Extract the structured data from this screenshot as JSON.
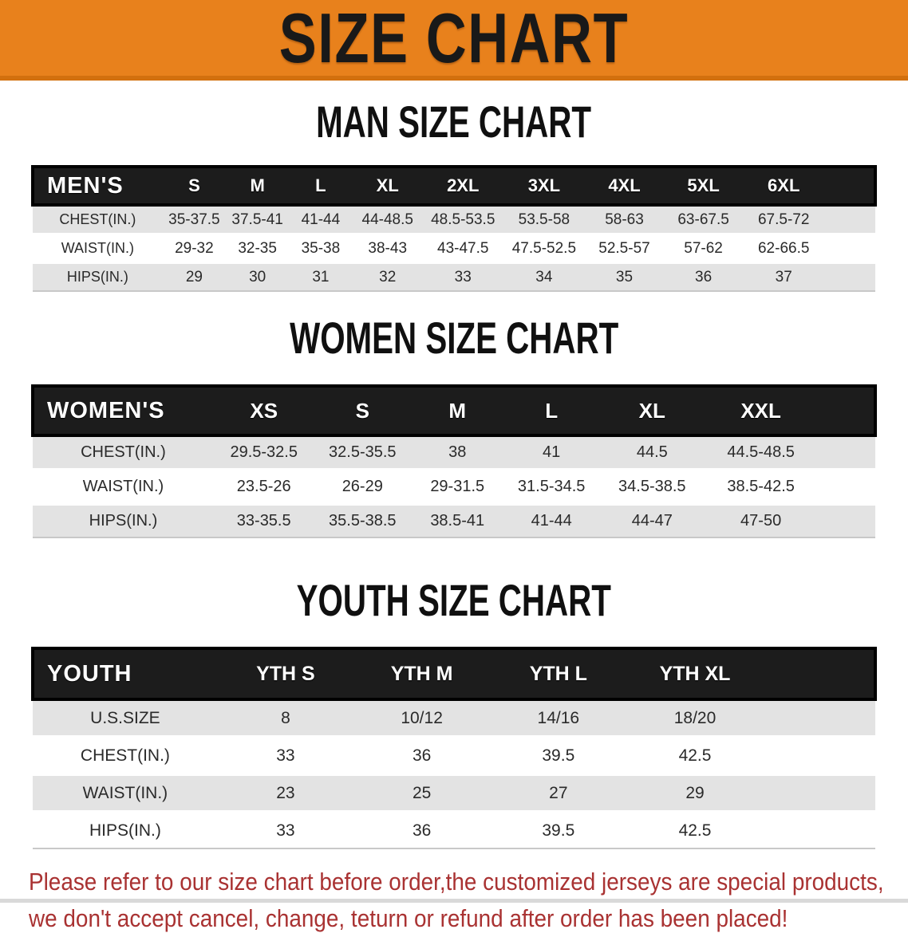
{
  "banner": {
    "title": "SIZE CHART"
  },
  "sections": [
    {
      "heading": "MAN SIZE CHART",
      "table": {
        "label": "MEN'S",
        "columns": [
          "S",
          "M",
          "L",
          "XL",
          "2XL",
          "3XL",
          "4XL",
          "5XL",
          "6XL"
        ],
        "rows": [
          {
            "label": "CHEST(IN.)",
            "values": [
              "35-37.5",
              "37.5-41",
              "41-44",
              "44-48.5",
              "48.5-53.5",
              "53.5-58",
              "58-63",
              "63-67.5",
              "67.5-72"
            ]
          },
          {
            "label": "WAIST(IN.)",
            "values": [
              "29-32",
              "32-35",
              "35-38",
              "38-43",
              "43-47.5",
              "47.5-52.5",
              "52.5-57",
              "57-62",
              "62-66.5"
            ]
          },
          {
            "label": "HIPS(IN.)",
            "values": [
              "29",
              "30",
              "31",
              "32",
              "33",
              "34",
              "35",
              "36",
              "37"
            ]
          }
        ]
      }
    },
    {
      "heading": "WOMEN SIZE CHART",
      "table": {
        "label": "WOMEN'S",
        "columns": [
          "XS",
          "S",
          "M",
          "L",
          "XL",
          "XXL"
        ],
        "rows": [
          {
            "label": "CHEST(IN.)",
            "values": [
              "29.5-32.5",
              "32.5-35.5",
              "38",
              "41",
              "44.5",
              "44.5-48.5"
            ]
          },
          {
            "label": "WAIST(IN.)",
            "values": [
              "23.5-26",
              "26-29",
              "29-31.5",
              "31.5-34.5",
              "34.5-38.5",
              "38.5-42.5"
            ]
          },
          {
            "label": "HIPS(IN.)",
            "values": [
              "33-35.5",
              "35.5-38.5",
              "38.5-41",
              "41-44",
              "44-47",
              "47-50"
            ]
          }
        ]
      }
    },
    {
      "heading": "YOUTH SIZE CHART",
      "table": {
        "label": "YOUTH",
        "columns": [
          "YTH S",
          "YTH M",
          "YTH L",
          "YTH XL"
        ],
        "rows": [
          {
            "label": "U.S.SIZE",
            "values": [
              "8",
              "10/12",
              "14/16",
              "18/20"
            ]
          },
          {
            "label": "CHEST(IN.)",
            "values": [
              "33",
              "36",
              "39.5",
              "42.5"
            ]
          },
          {
            "label": "WAIST(IN.)",
            "values": [
              "23",
              "25",
              "27",
              "29"
            ]
          },
          {
            "label": "HIPS(IN.)",
            "values": [
              "33",
              "36",
              "39.5",
              "42.5"
            ]
          }
        ]
      }
    }
  ],
  "footer": {
    "line1": "Please refer to our size chart before order,the customized jerseys are special products,",
    "line2": "we don't accept cancel, change, teturn or refund after order has been placed!"
  },
  "colors": {
    "banner_bg": "#E8811C",
    "banner_edge": "#D2700E",
    "banner_text": "#191919",
    "table_header_bg": "#1C1C1C",
    "table_header_text": "#FFFFFF",
    "row_stripe": "#E3E3E3",
    "footer_text": "#A93232"
  }
}
